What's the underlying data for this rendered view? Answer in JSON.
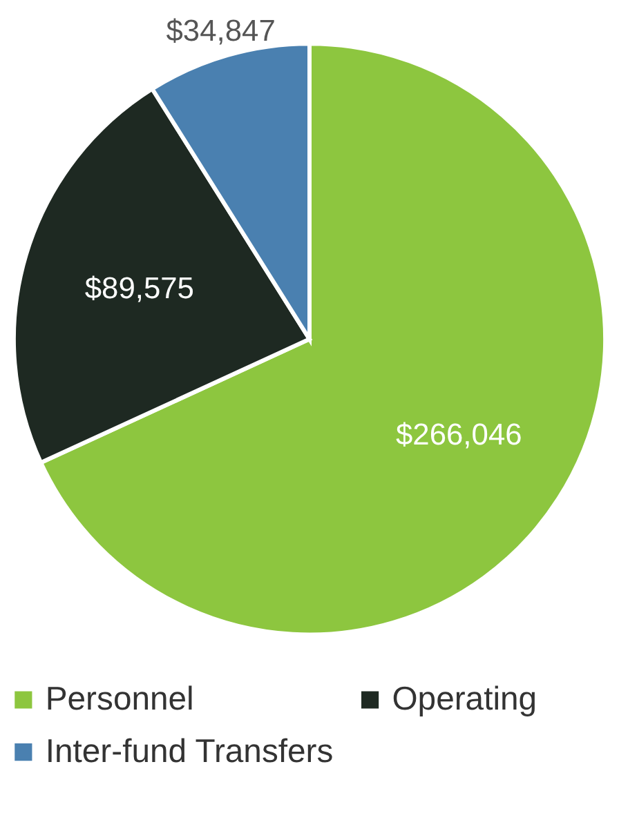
{
  "chart_data": {
    "type": "pie",
    "categories": [
      "Personnel",
      "Operating",
      "Inter-fund Transfers"
    ],
    "values": [
      266046,
      89575,
      34847
    ],
    "colors": [
      "#8dc63f",
      "#1e2922",
      "#4a80b0"
    ],
    "value_labels": [
      "$266,046",
      "$89,575",
      "$34,847"
    ],
    "legend": "bottom"
  }
}
